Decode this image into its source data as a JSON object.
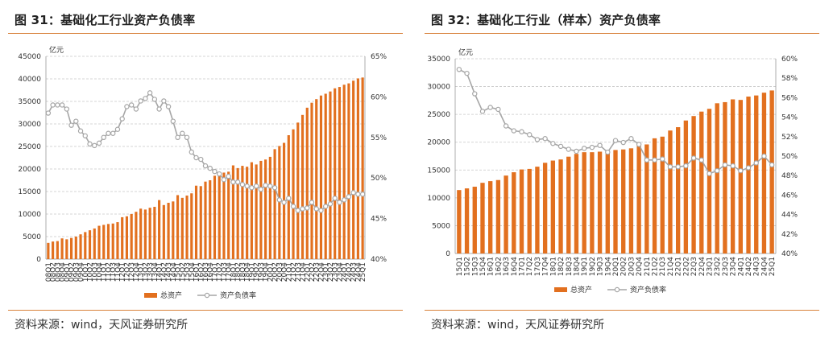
{
  "left": {
    "title": "图 31：基础化工行业资产负债率",
    "source": "资料来源：wind，天风证券研究所"
  },
  "right": {
    "title": "图 32：基础化工行业（样本）资产负债率",
    "source": "资料来源：wind，天风证券研究所"
  },
  "colors": {
    "bar": "#E2701F",
    "line": "#A6A6A6",
    "marker_fill": "#FFFFFF",
    "rule": "#D8813A",
    "grid": "#C8C8C8"
  },
  "chart_data": [
    {
      "type": "bar+line",
      "unit_label": "亿元",
      "grid": true,
      "legend_position": "bottom",
      "y_left": {
        "range": [
          0,
          45000
        ],
        "ticks": [
          0,
          5000,
          10000,
          15000,
          20000,
          25000,
          30000,
          35000,
          40000,
          45000
        ]
      },
      "y_right": {
        "range": [
          40,
          65
        ],
        "ticks": [
          "40%",
          "45%",
          "50%",
          "55%",
          "60%",
          "65%"
        ]
      },
      "categories": [
        "08Q1",
        "08Q2",
        "08Q3",
        "08Q4",
        "09Q1",
        "09Q2",
        "09Q3",
        "09Q4",
        "10Q1",
        "10Q2",
        "10Q3",
        "10Q4",
        "11Q1",
        "11Q2",
        "11Q3",
        "11Q4",
        "12Q1",
        "12Q2",
        "12Q3",
        "12Q4",
        "13Q1",
        "13Q2",
        "13Q3",
        "13Q4",
        "14Q1",
        "14Q2",
        "14Q3",
        "14Q4",
        "15Q1",
        "15Q2",
        "15Q3",
        "15Q4",
        "16Q1",
        "16Q2",
        "16Q3",
        "16Q4",
        "17Q1",
        "17Q2",
        "17Q3",
        "17Q4",
        "18Q1",
        "18Q2",
        "18Q3",
        "18Q4",
        "19Q1",
        "19Q2",
        "19Q3",
        "19Q4",
        "20Q1",
        "20Q2",
        "20Q3",
        "20Q4",
        "21Q1",
        "21Q2",
        "21Q3",
        "21Q4",
        "22Q1",
        "22Q2",
        "22Q3",
        "22Q4",
        "23Q1",
        "23Q2",
        "23Q3",
        "23Q4",
        "24Q1",
        "24Q2",
        "24Q3",
        "24Q4",
        "25Q1"
      ],
      "series": [
        {
          "name": "总资产",
          "type": "bar",
          "axis": "left",
          "values": [
            3600,
            3900,
            4000,
            4600,
            4400,
            4700,
            5000,
            5500,
            6000,
            6400,
            6800,
            7400,
            7600,
            7800,
            7900,
            8200,
            9300,
            9500,
            10000,
            10500,
            11200,
            11000,
            11400,
            11600,
            13100,
            12000,
            12500,
            12800,
            14200,
            13600,
            14100,
            14600,
            16300,
            16200,
            17200,
            17500,
            18500,
            18800,
            19200,
            19400,
            20800,
            20200,
            20700,
            20500,
            21500,
            21000,
            21800,
            22100,
            22700,
            24400,
            25100,
            25800,
            27500,
            28800,
            30300,
            32000,
            33600,
            34700,
            35500,
            36300,
            36700,
            37200,
            37900,
            38200,
            38700,
            39000,
            39600,
            40100,
            40300
          ]
        },
        {
          "name": "资产负债率",
          "type": "line",
          "axis": "right",
          "values": [
            58.0,
            59.0,
            59.0,
            59.0,
            58.5,
            56.5,
            57.0,
            55.8,
            55.2,
            54.2,
            54.0,
            54.3,
            55.0,
            55.5,
            55.5,
            56.0,
            57.3,
            58.8,
            59.0,
            58.5,
            59.5,
            59.8,
            60.5,
            59.7,
            58.5,
            59.5,
            58.8,
            57.0,
            55.0,
            55.5,
            55.0,
            53.2,
            52.5,
            52.3,
            51.5,
            51.2,
            50.8,
            50.5,
            49.8,
            50.2,
            49.5,
            49.5,
            49.2,
            49.0,
            48.8,
            49.0,
            48.6,
            49.1,
            49.0,
            48.8,
            47.3,
            47.0,
            47.5,
            46.5,
            46.0,
            46.2,
            46.3,
            47.0,
            46.2,
            46.0,
            46.5,
            46.8,
            47.5,
            47.0,
            47.3,
            47.7,
            48.2,
            48.0,
            48.0
          ]
        }
      ]
    },
    {
      "type": "bar+line",
      "unit_label": "亿元",
      "grid": true,
      "legend_position": "bottom",
      "y_left": {
        "range": [
          0,
          35000
        ],
        "ticks": [
          0,
          5000,
          10000,
          15000,
          20000,
          25000,
          30000,
          35000
        ]
      },
      "y_right": {
        "range": [
          40,
          60
        ],
        "ticks": [
          "40%",
          "42%",
          "44%",
          "46%",
          "48%",
          "50%",
          "52%",
          "54%",
          "56%",
          "58%",
          "60%"
        ]
      },
      "categories": [
        "15Q1",
        "15Q2",
        "15Q3",
        "15Q4",
        "16Q1",
        "16Q2",
        "16Q3",
        "16Q4",
        "17Q1",
        "17Q2",
        "17Q3",
        "17Q4",
        "18Q1",
        "18Q2",
        "18Q3",
        "18Q4",
        "19Q1",
        "19Q2",
        "19Q3",
        "19Q4",
        "20Q1",
        "20Q2",
        "20Q3",
        "20Q4",
        "21Q1",
        "21Q2",
        "21Q3",
        "21Q4",
        "22Q1",
        "22Q2",
        "22Q3",
        "22Q4",
        "23Q1",
        "23Q2",
        "23Q3",
        "23Q4",
        "24Q1",
        "24Q2",
        "24Q3",
        "24Q4",
        "25Q1"
      ],
      "series": [
        {
          "name": "总资产",
          "type": "bar",
          "axis": "left",
          "values": [
            11400,
            11700,
            12000,
            12700,
            13000,
            13200,
            14000,
            14600,
            15100,
            15200,
            15600,
            16300,
            16700,
            16900,
            17400,
            17900,
            18200,
            18200,
            18300,
            18500,
            18600,
            18700,
            18900,
            19400,
            19600,
            20700,
            21000,
            22100,
            22700,
            23900,
            24700,
            25500,
            26000,
            27000,
            27200,
            27700,
            27600,
            28200,
            28400,
            28900,
            29300
          ]
        },
        {
          "name": "资产负债率",
          "type": "line",
          "axis": "right",
          "values": [
            58.9,
            58.5,
            56.4,
            54.6,
            55.0,
            54.8,
            53.1,
            52.6,
            52.5,
            52.2,
            51.7,
            51.8,
            51.3,
            51.0,
            50.7,
            50.5,
            50.8,
            50.9,
            51.1,
            50.4,
            51.6,
            51.4,
            51.8,
            51.2,
            49.6,
            49.6,
            49.7,
            48.9,
            48.9,
            49.0,
            49.8,
            49.6,
            48.2,
            48.5,
            49.1,
            49.0,
            48.5,
            48.8,
            49.3,
            50.0,
            49.1
          ]
        }
      ]
    }
  ]
}
